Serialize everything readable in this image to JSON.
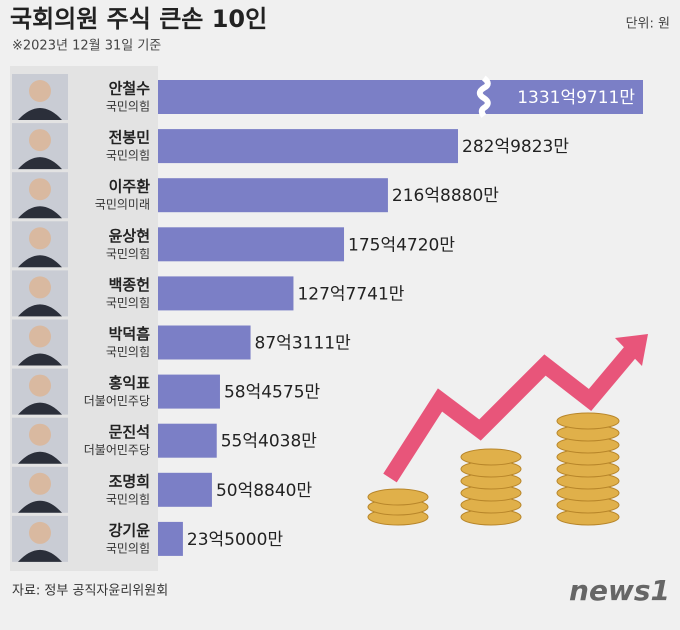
{
  "chart_data": {
    "type": "bar",
    "orientation": "horizontal",
    "title": "국회의원 주식 큰손 10인",
    "subtitle": "※2023년 12월 31일 기준",
    "unit": "단위: 원",
    "source": "자료: 정부 공직자윤리위원회",
    "logo": "news1",
    "color": "#7b7fc6",
    "categories": [
      "안철수",
      "전봉민",
      "이주환",
      "윤상현",
      "백종헌",
      "박덕흠",
      "홍익표",
      "문진석",
      "조명희",
      "강기윤"
    ],
    "parties": [
      "국민의힘",
      "국민의힘",
      "국민의미래",
      "국민의힘",
      "국민의힘",
      "국민의힘",
      "더불어민주당",
      "더불어민주당",
      "국민의힘",
      "국민의힘"
    ],
    "values": [
      133197110000,
      28298230000,
      21688800000,
      17547200000,
      12777410000,
      8731110000,
      5845750000,
      5540380000,
      5088400000,
      2350000000
    ],
    "value_labels": [
      "1331억9711만",
      "282억9823만",
      "216억8880만",
      "175억4720만",
      "127억7741만",
      "87억3111만",
      "58억4575만",
      "55억4038만",
      "50억8840만",
      "23억5000만"
    ]
  }
}
